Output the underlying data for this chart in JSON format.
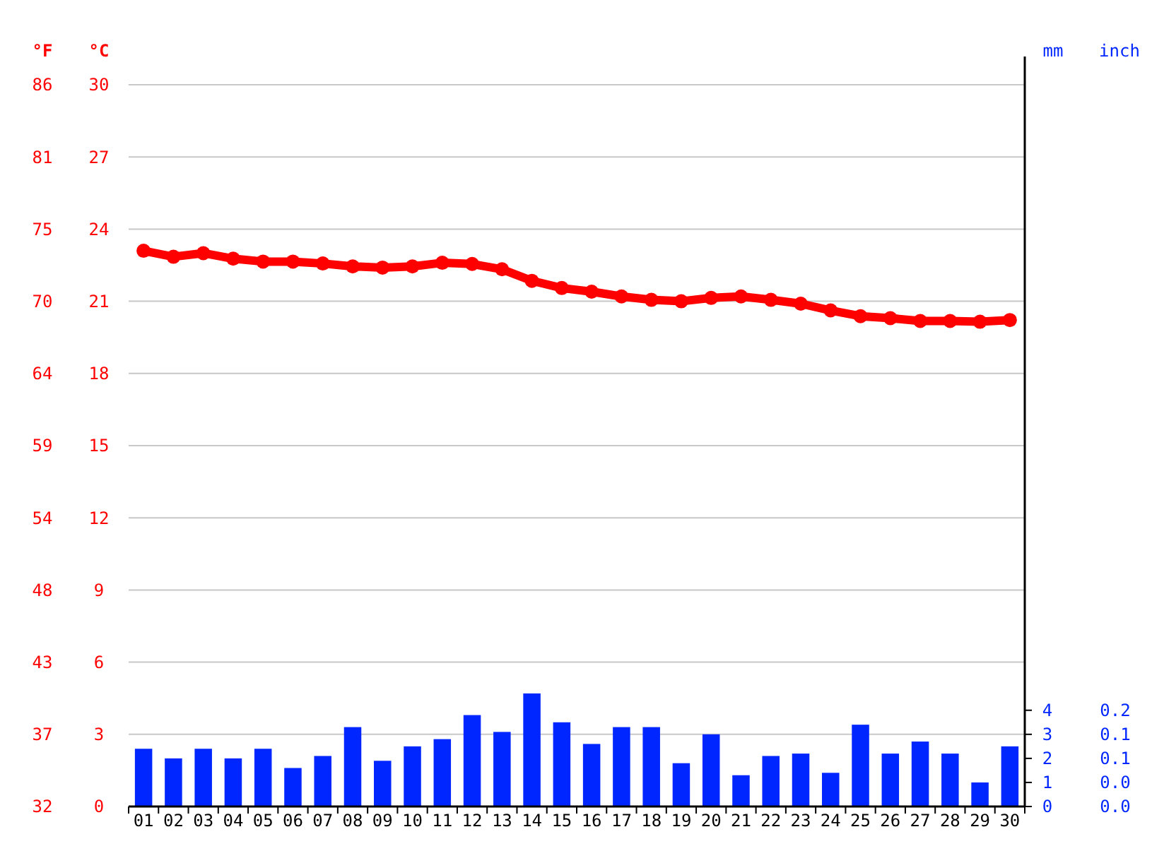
{
  "chart_data": {
    "type": "bar",
    "ylabel": "°C",
    "y2label": "°F",
    "y3label": "mm",
    "annotations": [
      "inch",
      "0.0",
      "0.0",
      "0.1",
      "0.1",
      "0.2"
    ],
    "categories": [
      "01",
      "02",
      "03",
      "04",
      "05",
      "06",
      "07",
      "08",
      "09",
      "10",
      "11",
      "12",
      "13",
      "14",
      "15",
      "16",
      "17",
      "18",
      "19",
      "20",
      "21",
      "22",
      "23",
      "24",
      "25",
      "26",
      "27",
      "28",
      "29",
      "30"
    ],
    "series": [
      {
        "color": "#0026ff",
        "values": [
          2.4,
          2.0,
          2.4,
          2.0,
          2.4,
          1.6,
          2.1,
          3.3,
          1.9,
          2.5,
          2.8,
          3.8,
          3.1,
          4.7,
          3.5,
          2.6,
          3.3,
          3.3,
          1.8,
          3.0,
          1.3,
          2.1,
          2.2,
          1.4,
          3.4,
          2.2,
          2.7,
          2.2,
          1.0,
          2.5
        ]
      },
      {
        "type": "line",
        "color": "#ff0000",
        "values": [
          23.1,
          22.85,
          23.0,
          22.77,
          22.65,
          22.65,
          22.57,
          22.45,
          22.4,
          22.45,
          22.6,
          22.55,
          22.33,
          21.85,
          21.55,
          21.4,
          21.2,
          21.06,
          21.0,
          21.14,
          21.2,
          21.06,
          20.9,
          20.62,
          20.38,
          20.3,
          20.18,
          20.18,
          20.15,
          20.22
        ]
      }
    ],
    "ylim": [
      0,
      30
    ],
    "yticks": [
      0,
      3,
      6,
      9,
      12,
      15,
      18,
      21,
      24,
      27,
      30
    ],
    "y2lim": [
      32,
      86
    ],
    "y2ticks": [
      32,
      {
        "value": 37.4,
        "label": "37"
      },
      {
        "value": 42.8,
        "label": "43"
      },
      {
        "value": 48.2,
        "label": "48"
      },
      {
        "value": 53.6,
        "label": "54"
      },
      59,
      {
        "value": 64.4,
        "label": "64"
      },
      {
        "value": 69.8,
        "label": "70"
      },
      {
        "value": 75.2,
        "label": "75"
      },
      {
        "value": 80.6,
        "label": "81"
      },
      86
    ],
    "y3lim": [
      0,
      30
    ],
    "y3ticks": [
      0,
      1,
      2,
      3,
      4
    ],
    "grid": "y",
    "marker": "circle",
    "line_style": "solid"
  }
}
